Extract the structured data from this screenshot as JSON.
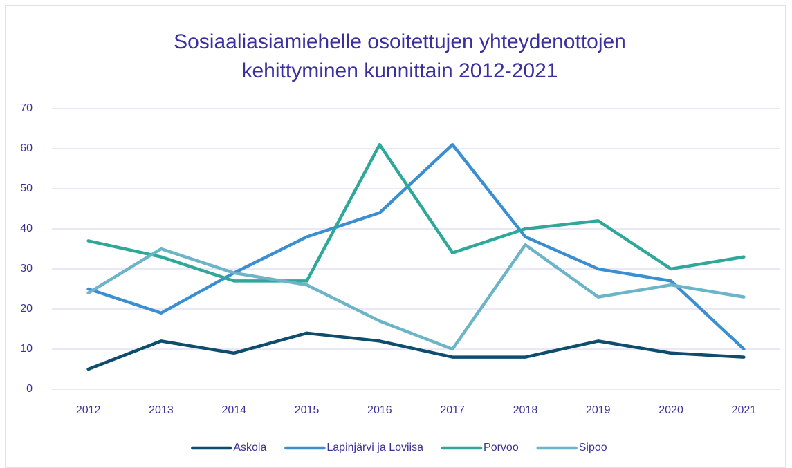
{
  "chart_data": {
    "type": "line",
    "title": [
      "Sosiaaliasiamiehelle osoitettujen yhteydenottojen",
      "kehittyminen kunnittain 2012-2021"
    ],
    "categories": [
      "2012",
      "2013",
      "2014",
      "2015",
      "2016",
      "2017",
      "2018",
      "2019",
      "2020",
      "2021"
    ],
    "series": [
      {
        "name": "Askola",
        "color": "#0e4d6e",
        "values": [
          5,
          12,
          9,
          14,
          12,
          8,
          8,
          12,
          9,
          8
        ]
      },
      {
        "name": "Lapinjärvi ja Loviisa",
        "color": "#3b8fd1",
        "values": [
          25,
          19,
          29,
          38,
          44,
          61,
          38,
          30,
          27,
          10
        ]
      },
      {
        "name": "Porvoo",
        "color": "#2fa89a",
        "values": [
          37,
          33,
          27,
          27,
          61,
          34,
          40,
          42,
          30,
          33
        ]
      },
      {
        "name": "Sipoo",
        "color": "#6cb5c9",
        "values": [
          24,
          35,
          29,
          26,
          17,
          10,
          36,
          23,
          26,
          23
        ]
      }
    ],
    "ylim": [
      0,
      70
    ],
    "yticks": [
      0,
      10,
      20,
      30,
      40,
      50,
      60,
      70
    ],
    "grid": true,
    "legend": "bottom"
  }
}
